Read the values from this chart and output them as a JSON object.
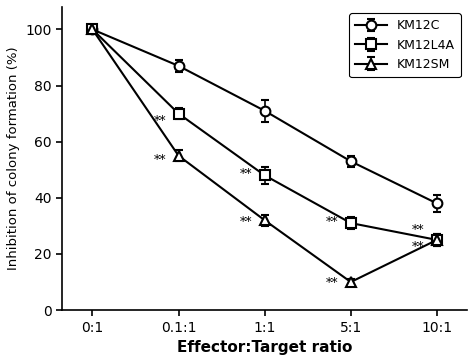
{
  "x_labels": [
    "0:1",
    "0.1:1",
    "1:1",
    "5:1",
    "10:1"
  ],
  "x_positions": [
    0,
    1,
    2,
    3,
    4
  ],
  "series": [
    {
      "label": "KM12C",
      "marker": "o",
      "values": [
        100,
        87,
        71,
        53,
        38
      ],
      "yerr": [
        1,
        2,
        4,
        2,
        3
      ],
      "color": "#000000",
      "fillstyle": "none"
    },
    {
      "label": "KM12L4A",
      "marker": "s",
      "values": [
        100,
        70,
        48,
        31,
        25
      ],
      "yerr": [
        1,
        2,
        3,
        2,
        2
      ],
      "color": "#000000",
      "fillstyle": "none"
    },
    {
      "label": "KM12SM",
      "marker": "^",
      "values": [
        100,
        55,
        32,
        10,
        25
      ],
      "yerr": [
        1,
        2,
        2,
        1,
        2
      ],
      "color": "#000000",
      "fillstyle": "none"
    }
  ],
  "annotations": [
    {
      "text": "**",
      "xi": 1,
      "yi": 66,
      "ha": "right"
    },
    {
      "text": "**",
      "xi": 1,
      "yi": 52,
      "ha": "right"
    },
    {
      "text": "**",
      "xi": 2,
      "yi": 46,
      "ha": "right"
    },
    {
      "text": "**",
      "xi": 2,
      "yi": 30,
      "ha": "right"
    },
    {
      "text": "**",
      "xi": 3,
      "yi": 29,
      "ha": "right"
    },
    {
      "text": "**",
      "xi": 3,
      "yi": 8,
      "ha": "right"
    },
    {
      "text": "**",
      "xi": 4,
      "yi": 28,
      "ha": "right"
    },
    {
      "text": "**",
      "xi": 4,
      "yi": 22,
      "ha": "right"
    }
  ],
  "ylabel": "Inhibition of colony formation (%)",
  "xlabel": "Effector:Target ratio",
  "ylim": [
    0,
    108
  ],
  "yticks": [
    0,
    20,
    40,
    60,
    80,
    100
  ],
  "background_color": "#ffffff",
  "legend_loc": "upper right",
  "legend_frameon": true
}
